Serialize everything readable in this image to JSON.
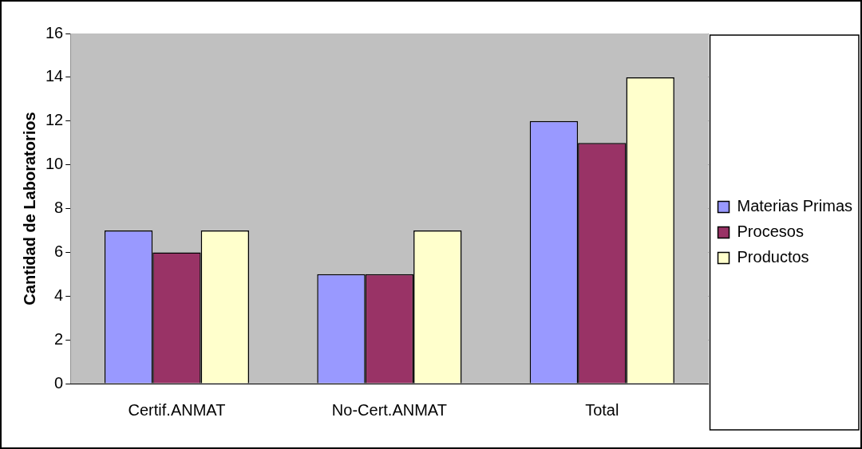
{
  "chart_data": {
    "type": "bar",
    "ylabel": "Cantidad de Laboratorios",
    "categories": [
      "Certif.ANMAT",
      "No-Cert.ANMAT",
      "Total"
    ],
    "series": [
      {
        "name": "Materias Primas",
        "color": "#9999ff",
        "values": [
          7,
          5,
          12
        ]
      },
      {
        "name": "Procesos",
        "color": "#993366",
        "values": [
          6,
          5,
          11
        ]
      },
      {
        "name": "Productos",
        "color": "#ffffcc",
        "values": [
          7,
          7,
          14
        ]
      }
    ],
    "ylim": [
      0,
      16
    ],
    "yticks": [
      0,
      2,
      4,
      6,
      8,
      10,
      12,
      14,
      16
    ],
    "grid": "y",
    "legend": "right"
  }
}
